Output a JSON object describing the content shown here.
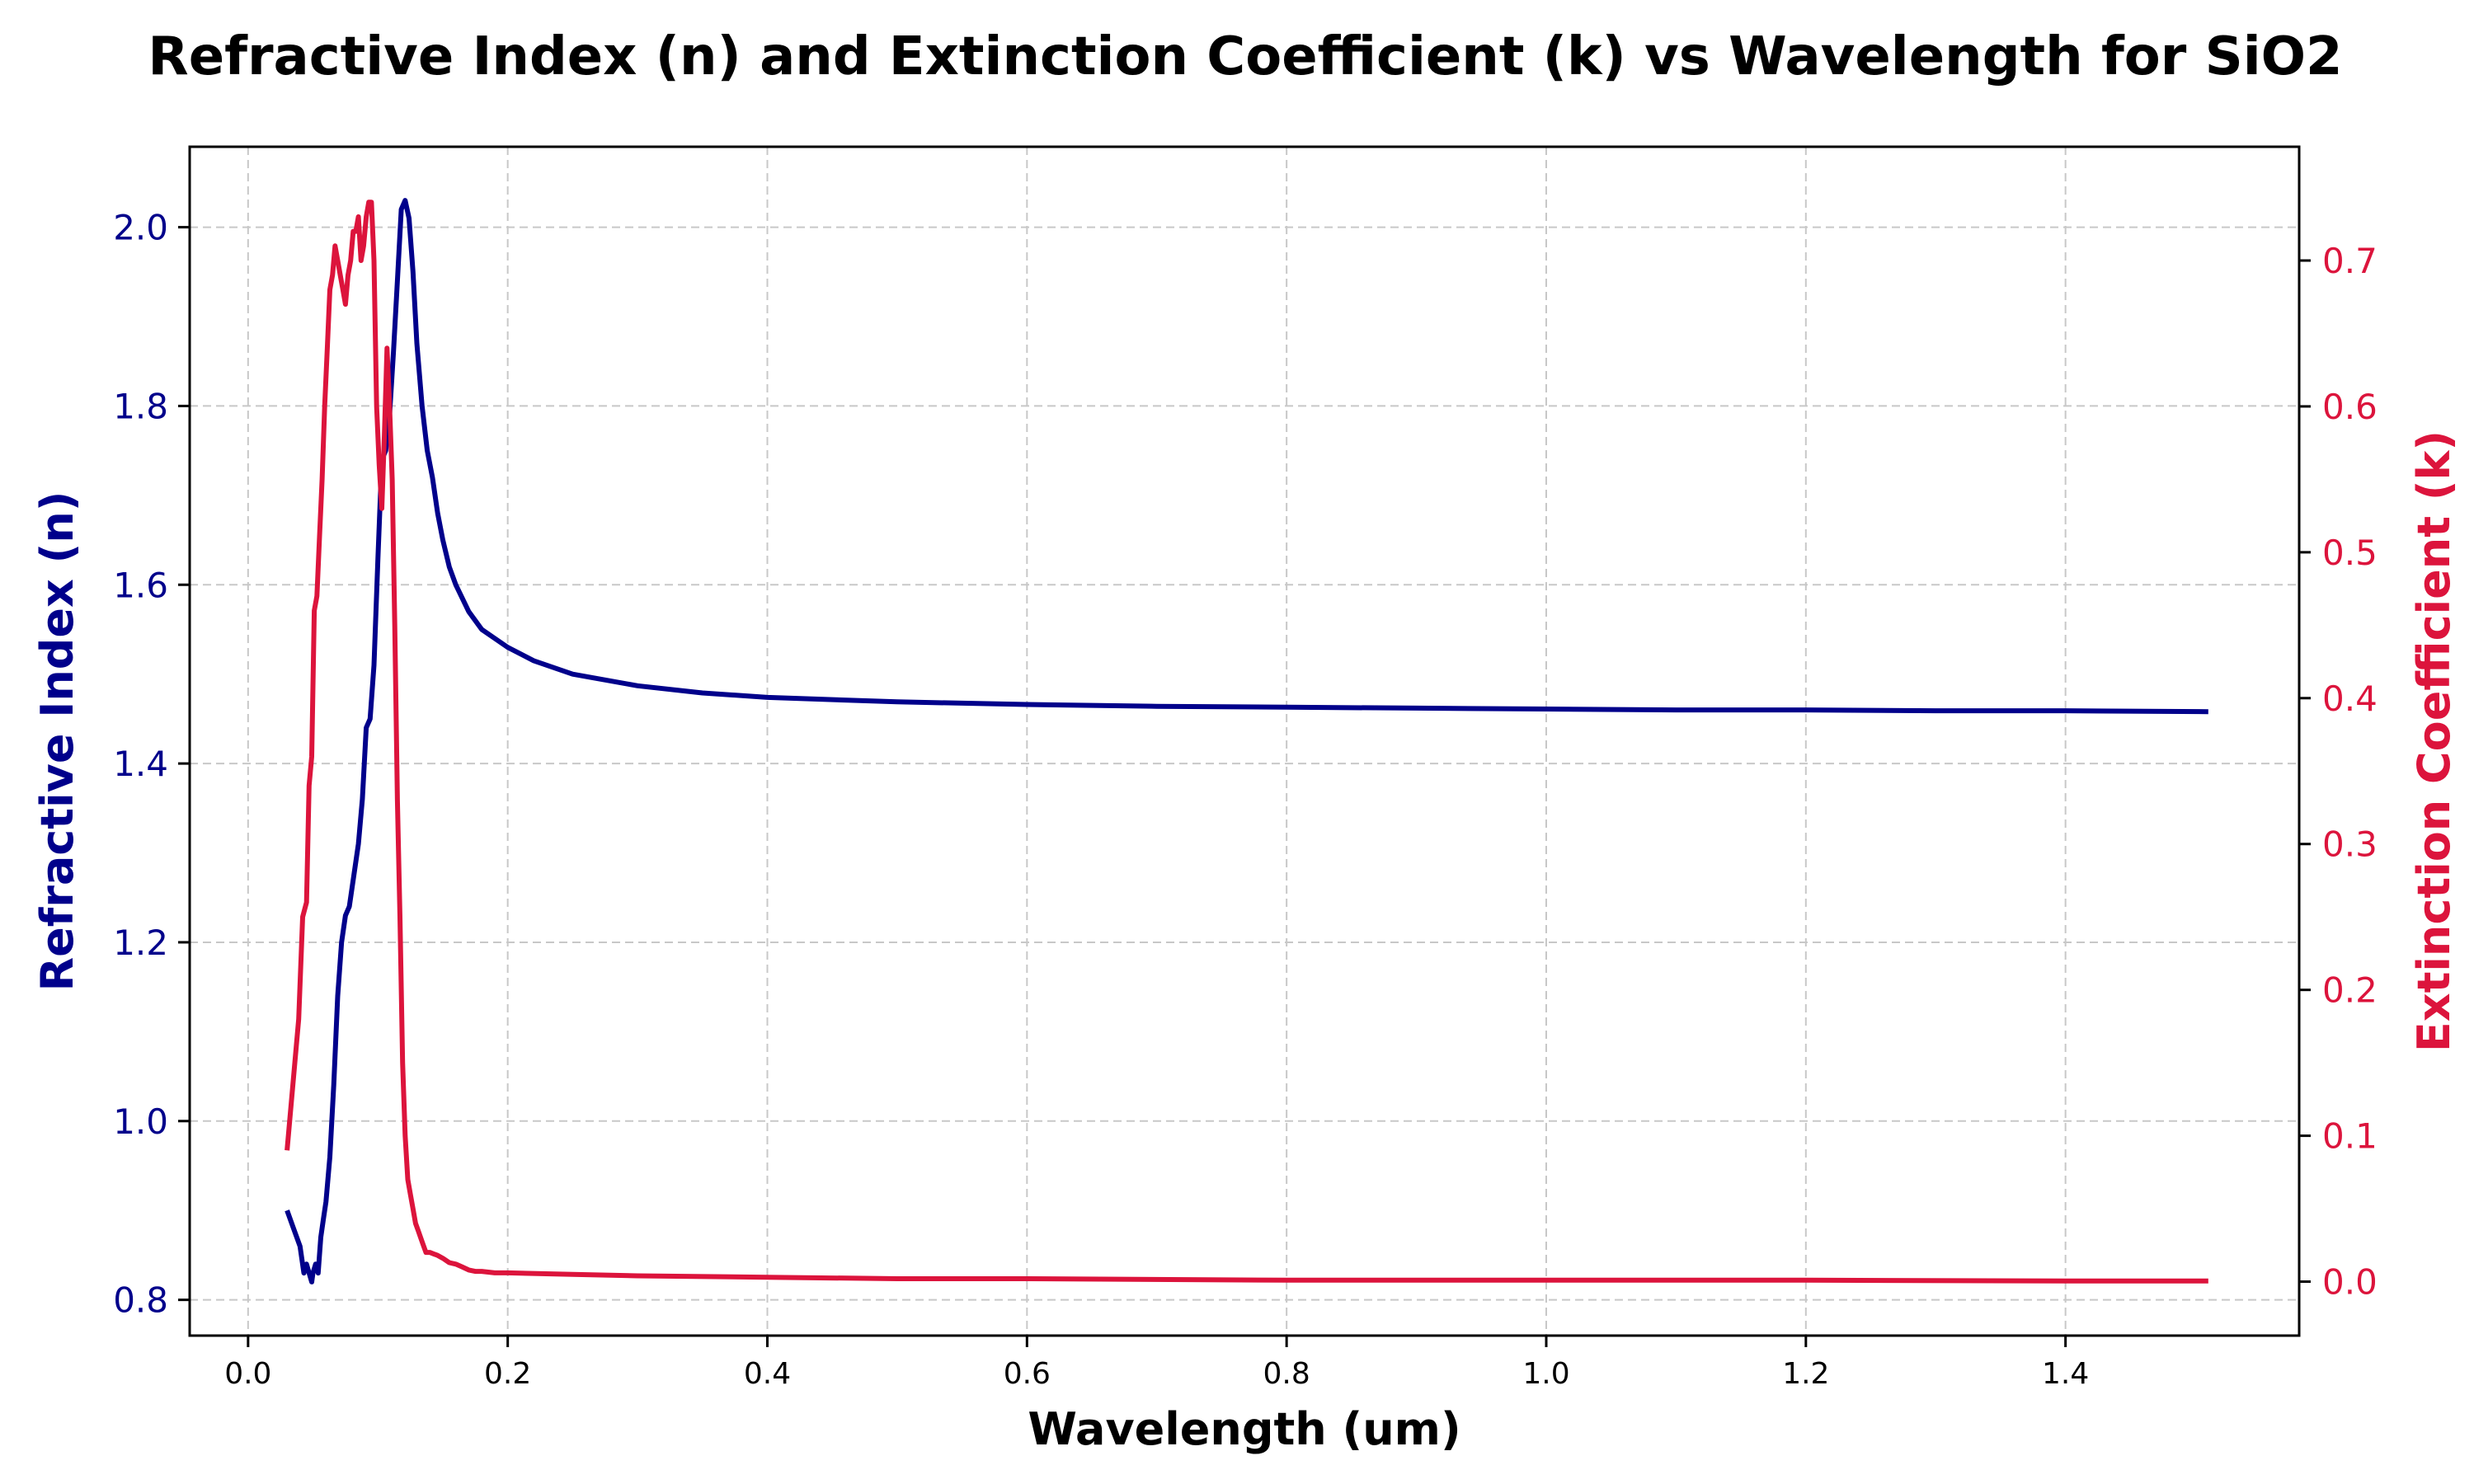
{
  "chart_data": {
    "type": "line",
    "title": "Refractive Index (n) and Extinction Coefficient (k) vs Wavelength for SiO2",
    "xlabel": "Wavelength (um)",
    "ylabel_left": "Refractive Index (n)",
    "ylabel_right": "Extinction Coefficient (k)",
    "xlim": [
      -0.045,
      1.58
    ],
    "ylim_left": [
      0.76,
      2.09
    ],
    "ylim_right": [
      -0.037,
      0.778
    ],
    "x_ticks": [
      "0.0",
      "0.2",
      "0.4",
      "0.6",
      "0.8",
      "1.0",
      "1.2",
      "1.4"
    ],
    "y_left_ticks": [
      "0.8",
      "1.0",
      "1.2",
      "1.4",
      "1.6",
      "1.8",
      "2.0"
    ],
    "y_right_ticks": [
      "0.0",
      "0.1",
      "0.2",
      "0.3",
      "0.4",
      "0.5",
      "0.6",
      "0.7"
    ],
    "grid": true,
    "colors": {
      "n": "#00008b",
      "k": "#dc143c"
    },
    "series": [
      {
        "axis": "left",
        "color": "#00008b",
        "x": [
          0.03,
          0.035,
          0.04,
          0.043,
          0.045,
          0.047,
          0.049,
          0.05,
          0.052,
          0.054,
          0.056,
          0.058,
          0.06,
          0.063,
          0.066,
          0.069,
          0.072,
          0.075,
          0.078,
          0.082,
          0.085,
          0.088,
          0.091,
          0.094,
          0.097,
          0.1,
          0.103,
          0.106,
          0.109,
          0.112,
          0.115,
          0.118,
          0.121,
          0.124,
          0.127,
          0.13,
          0.134,
          0.138,
          0.142,
          0.146,
          0.15,
          0.155,
          0.16,
          0.17,
          0.18,
          0.19,
          0.2,
          0.22,
          0.25,
          0.3,
          0.35,
          0.4,
          0.5,
          0.6,
          0.7,
          0.8,
          0.9,
          1.0,
          1.1,
          1.2,
          1.3,
          1.4,
          1.51
        ],
        "y": [
          0.9,
          0.88,
          0.86,
          0.83,
          0.84,
          0.83,
          0.82,
          0.83,
          0.84,
          0.83,
          0.87,
          0.89,
          0.91,
          0.96,
          1.04,
          1.14,
          1.2,
          1.23,
          1.24,
          1.28,
          1.31,
          1.36,
          1.44,
          1.45,
          1.51,
          1.63,
          1.74,
          1.75,
          1.79,
          1.86,
          1.94,
          2.02,
          2.03,
          2.01,
          1.95,
          1.87,
          1.8,
          1.75,
          1.72,
          1.68,
          1.65,
          1.62,
          1.6,
          1.57,
          1.55,
          1.54,
          1.53,
          1.515,
          1.5,
          1.487,
          1.479,
          1.474,
          1.469,
          1.466,
          1.464,
          1.463,
          1.462,
          1.461,
          1.46,
          1.46,
          1.459,
          1.459,
          1.458
        ]
      },
      {
        "axis": "right",
        "color": "#dc143c",
        "x": [
          0.03,
          0.033,
          0.036,
          0.039,
          0.042,
          0.045,
          0.047,
          0.049,
          0.051,
          0.053,
          0.055,
          0.057,
          0.059,
          0.061,
          0.063,
          0.065,
          0.067,
          0.069,
          0.071,
          0.073,
          0.075,
          0.077,
          0.079,
          0.081,
          0.083,
          0.085,
          0.087,
          0.089,
          0.091,
          0.093,
          0.095,
          0.097,
          0.099,
          0.101,
          0.103,
          0.105,
          0.107,
          0.109,
          0.111,
          0.113,
          0.115,
          0.117,
          0.119,
          0.121,
          0.123,
          0.125,
          0.127,
          0.129,
          0.131,
          0.133,
          0.135,
          0.137,
          0.14,
          0.143,
          0.146,
          0.15,
          0.155,
          0.16,
          0.165,
          0.17,
          0.175,
          0.18,
          0.19,
          0.2,
          0.25,
          0.3,
          0.4,
          0.5,
          0.6,
          0.8,
          1.0,
          1.2,
          1.4,
          1.51
        ],
        "y": [
          0.09,
          0.12,
          0.15,
          0.18,
          0.25,
          0.26,
          0.34,
          0.36,
          0.46,
          0.47,
          0.51,
          0.55,
          0.6,
          0.64,
          0.68,
          0.69,
          0.71,
          0.7,
          0.69,
          0.68,
          0.67,
          0.69,
          0.7,
          0.72,
          0.72,
          0.73,
          0.7,
          0.71,
          0.73,
          0.74,
          0.74,
          0.7,
          0.6,
          0.56,
          0.53,
          0.58,
          0.64,
          0.6,
          0.55,
          0.45,
          0.33,
          0.25,
          0.15,
          0.1,
          0.07,
          0.06,
          0.05,
          0.04,
          0.035,
          0.03,
          0.025,
          0.02,
          0.02,
          0.019,
          0.018,
          0.016,
          0.013,
          0.012,
          0.01,
          0.008,
          0.007,
          0.007,
          0.006,
          0.006,
          0.005,
          0.004,
          0.003,
          0.002,
          0.002,
          0.001,
          0.001,
          0.001,
          0.0005,
          0.0005
        ]
      }
    ]
  }
}
